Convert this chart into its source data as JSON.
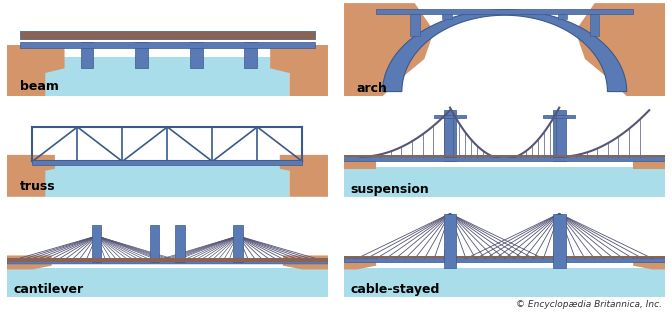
{
  "background": "#ffffff",
  "ground_color": "#d4956a",
  "water_color": "#a8dde9",
  "deck_color": "#8b6355",
  "structure_color": "#5a7ab5",
  "structure_dark": "#3a5a8a",
  "cable_color": "#555577",
  "labels": [
    "beam",
    "truss",
    "cantilever",
    "arch",
    "suspension",
    "cable-stayed"
  ],
  "label_fontsize": 9,
  "credit": "© Encyclopædia Britannica, Inc.",
  "credit_fontsize": 6.5
}
